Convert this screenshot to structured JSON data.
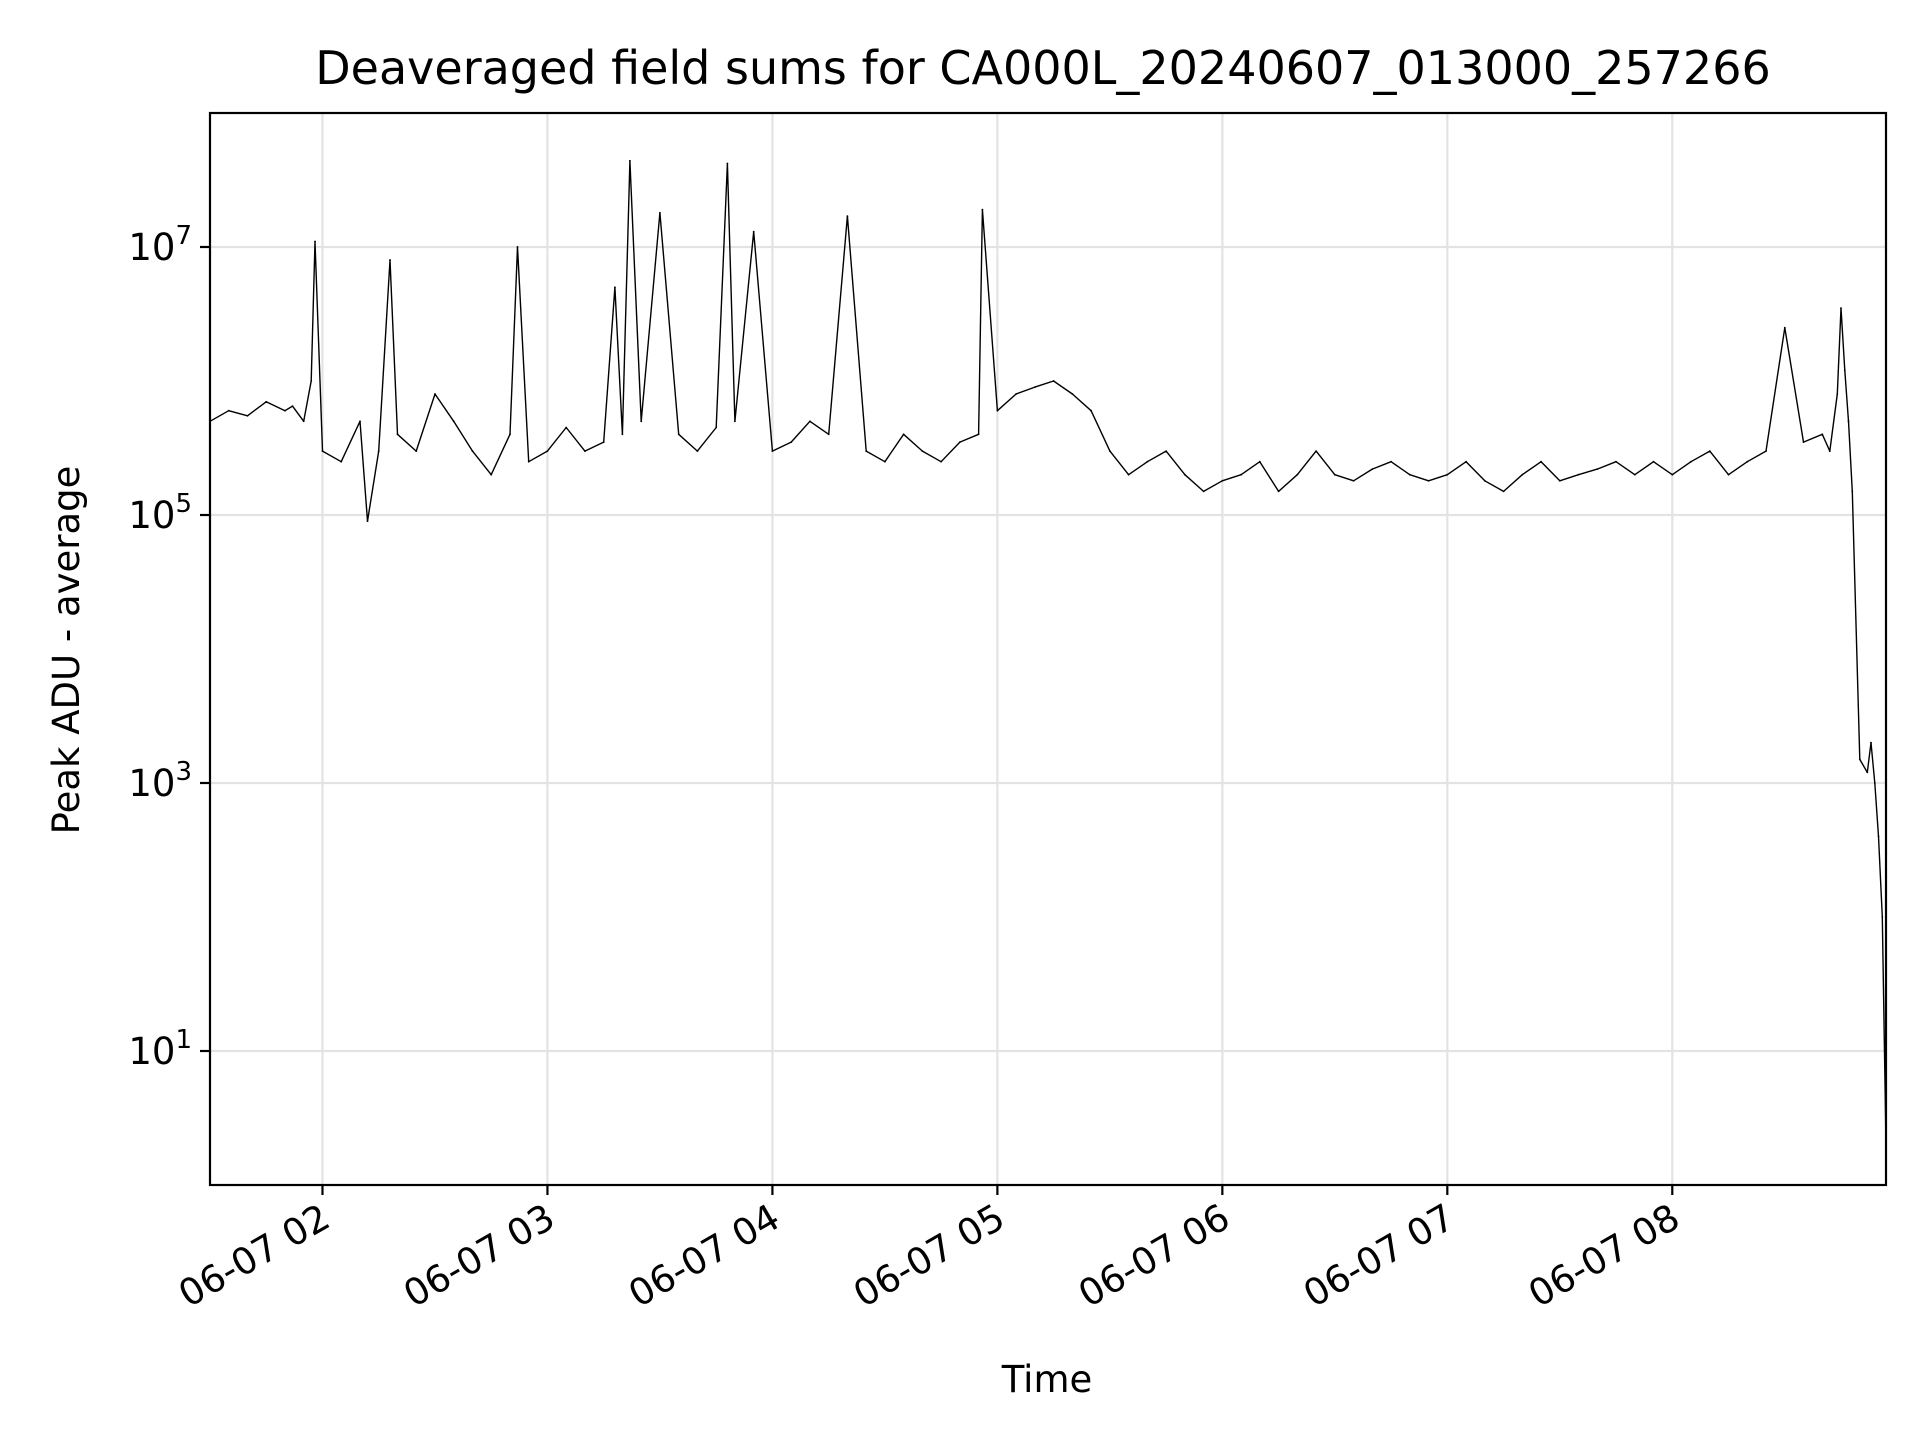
{
  "chart_data": {
    "type": "line",
    "title": "Deaveraged field sums for CA000L_20240607_013000_257266",
    "xlabel": "Time",
    "ylabel": "Peak ADU - average",
    "yscale": "log",
    "grid": true,
    "line_color": "#000000",
    "xlim": [
      "06-07 01:30",
      "06-07 08:57"
    ],
    "ylim": [
      1,
      100000000.0
    ],
    "x_ticks": [
      "06-07 02",
      "06-07 03",
      "06-07 04",
      "06-07 05",
      "06-07 06",
      "06-07 07",
      "06-07 08"
    ],
    "y_ticks": [
      {
        "base": "10",
        "exp": "1",
        "value": 10
      },
      {
        "base": "10",
        "exp": "3",
        "value": 1000
      },
      {
        "base": "10",
        "exp": "5",
        "value": 100000
      },
      {
        "base": "10",
        "exp": "7",
        "value": 10000000
      }
    ],
    "series": [
      {
        "x": [
          "06-07 01:30",
          "06-07 01:35",
          "06-07 01:40",
          "06-07 01:45",
          "06-07 01:50",
          "06-07 01:52",
          "06-07 01:55",
          "06-07 01:57",
          "06-07 01:58",
          "06-07 02:00",
          "06-07 02:05",
          "06-07 02:10",
          "06-07 02:12",
          "06-07 02:15",
          "06-07 02:18",
          "06-07 02:20",
          "06-07 02:25",
          "06-07 02:30",
          "06-07 02:35",
          "06-07 02:40",
          "06-07 02:45",
          "06-07 02:50",
          "06-07 02:52",
          "06-07 02:55",
          "06-07 03:00",
          "06-07 03:05",
          "06-07 03:10",
          "06-07 03:15",
          "06-07 03:18",
          "06-07 03:20",
          "06-07 03:22",
          "06-07 03:25",
          "06-07 03:30",
          "06-07 03:35",
          "06-07 03:40",
          "06-07 03:45",
          "06-07 03:48",
          "06-07 03:50",
          "06-07 03:55",
          "06-07 04:00",
          "06-07 04:05",
          "06-07 04:10",
          "06-07 04:15",
          "06-07 04:20",
          "06-07 04:25",
          "06-07 04:30",
          "06-07 04:35",
          "06-07 04:40",
          "06-07 04:45",
          "06-07 04:50",
          "06-07 04:55",
          "06-07 04:56",
          "06-07 05:00",
          "06-07 05:05",
          "06-07 05:10",
          "06-07 05:15",
          "06-07 05:20",
          "06-07 05:25",
          "06-07 05:30",
          "06-07 05:35",
          "06-07 05:40",
          "06-07 05:45",
          "06-07 05:50",
          "06-07 05:55",
          "06-07 06:00",
          "06-07 06:05",
          "06-07 06:10",
          "06-07 06:15",
          "06-07 06:20",
          "06-07 06:25",
          "06-07 06:30",
          "06-07 06:35",
          "06-07 06:40",
          "06-07 06:45",
          "06-07 06:50",
          "06-07 06:55",
          "06-07 07:00",
          "06-07 07:05",
          "06-07 07:10",
          "06-07 07:15",
          "06-07 07:20",
          "06-07 07:25",
          "06-07 07:30",
          "06-07 07:35",
          "06-07 07:40",
          "06-07 07:45",
          "06-07 07:50",
          "06-07 07:55",
          "06-07 08:00",
          "06-07 08:05",
          "06-07 08:10",
          "06-07 08:15",
          "06-07 08:20",
          "06-07 08:25",
          "06-07 08:30",
          "06-07 08:35",
          "06-07 08:40",
          "06-07 08:42",
          "06-07 08:44",
          "06-07 08:45",
          "06-07 08:46",
          "06-07 08:47",
          "06-07 08:48",
          "06-07 08:50",
          "06-07 08:52",
          "06-07 08:53",
          "06-07 08:54",
          "06-07 08:55",
          "06-07 08:56",
          "06-07 08:57"
        ],
        "y": [
          500000,
          600000,
          550000,
          700000,
          600000,
          650000,
          500000,
          1000000,
          11000000,
          300000,
          250000,
          500000,
          90000,
          300000,
          8000000,
          400000,
          300000,
          800000,
          500000,
          300000,
          200000,
          400000,
          10000000,
          250000,
          300000,
          450000,
          300000,
          350000,
          5000000,
          400000,
          44000000,
          500000,
          18000000,
          400000,
          300000,
          450000,
          42000000,
          500000,
          13000000,
          300000,
          350000,
          500000,
          400000,
          17000000,
          300000,
          250000,
          400000,
          300000,
          250000,
          350000,
          400000,
          19000000,
          600000,
          800000,
          900000,
          1000000,
          800000,
          600000,
          300000,
          200000,
          250000,
          300000,
          200000,
          150000,
          180000,
          200000,
          250000,
          150000,
          200000,
          300000,
          200000,
          180000,
          220000,
          250000,
          200000,
          180000,
          200000,
          250000,
          180000,
          150000,
          200000,
          250000,
          180000,
          200000,
          220000,
          250000,
          200000,
          250000,
          200000,
          250000,
          300000,
          200000,
          250000,
          300000,
          2500000,
          350000,
          400000,
          300000,
          800000,
          3500000,
          1200000,
          500000,
          150000,
          1500,
          1200,
          2000,
          1000,
          400,
          100,
          2
        ]
      }
    ]
  }
}
